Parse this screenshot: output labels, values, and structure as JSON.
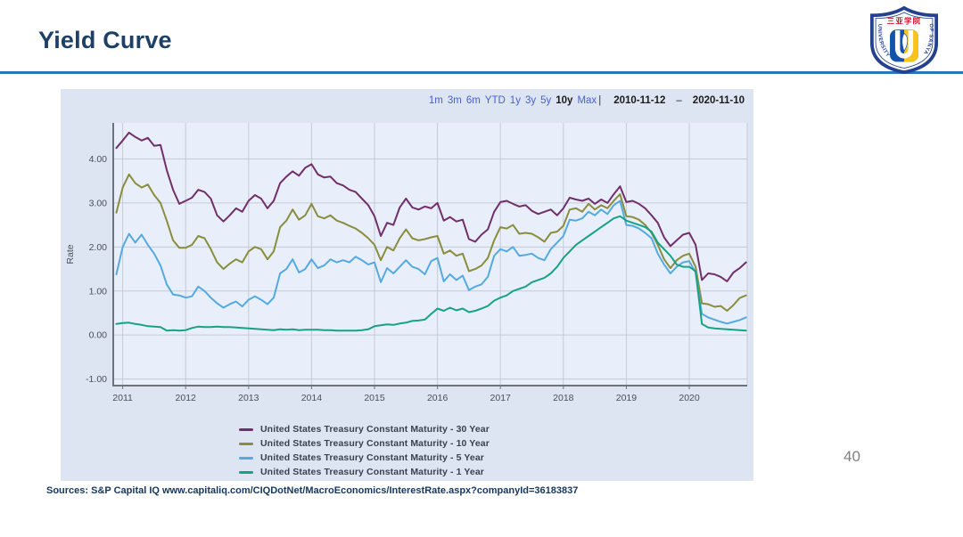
{
  "slide": {
    "title": "Yield Curve",
    "page_number": "40",
    "source_text": "Sources: S&P Capital IQ   www.capitaliq.com/CIQDotNet/MacroEconomics/InterestRate.aspx?companyId=36183837"
  },
  "logo": {
    "top_text": "三亚学院",
    "left_text": "UNIVERSITY",
    "right_text": "OF SANYA"
  },
  "range_selector": {
    "options": [
      "1m",
      "3m",
      "6m",
      "YTD",
      "1y",
      "3y",
      "5y",
      "10y",
      "Max"
    ],
    "active": "10y",
    "separator": "|",
    "start_date": "2010-11-12",
    "dash": "–",
    "end_date": "2020-11-10"
  },
  "colors": {
    "accent_rule": "#2e75b6",
    "title_text": "#1e3f66",
    "panel_bg": "#dce5f1",
    "plot_bg": "#e9effa",
    "grid": "#c5cad3",
    "axis": "#6e737b",
    "tick_text": "#4a5059",
    "link_blue": "#4a5fd0",
    "selected_text": "#1b1b1b",
    "legend_text": "#3a4250",
    "source_text": "#17365d",
    "page_number": "#808080",
    "logo_blue": "#24408e",
    "logo_red": "#cf1126",
    "logo_yellow": "#f6c51d"
  },
  "chart_data": {
    "type": "line",
    "title": "",
    "xlabel": "",
    "ylabel": "Rate",
    "grid": true,
    "legend_position": "bottom",
    "xlim": [
      2010.85,
      2020.92
    ],
    "ylim": [
      -1.15,
      4.82
    ],
    "x_ticks": [
      2011,
      2012,
      2013,
      2014,
      2015,
      2016,
      2017,
      2018,
      2019,
      2020
    ],
    "y_ticks": [
      4,
      3,
      2,
      1,
      0,
      -1
    ],
    "x_start": 2010.9,
    "x_step": 0.1,
    "x_unit": "decimal_year",
    "y_unit": "percent",
    "series": [
      {
        "name": "United States Treasury Constant Maturity - 30 Year",
        "short": "30-year",
        "color": "#702f6b",
        "values": [
          4.25,
          4.42,
          4.6,
          4.5,
          4.42,
          4.48,
          4.3,
          4.32,
          3.75,
          3.3,
          2.98,
          3.05,
          3.12,
          3.3,
          3.25,
          3.1,
          2.72,
          2.58,
          2.72,
          2.88,
          2.8,
          3.05,
          3.18,
          3.1,
          2.88,
          3.05,
          3.45,
          3.6,
          3.72,
          3.62,
          3.8,
          3.88,
          3.65,
          3.58,
          3.6,
          3.45,
          3.4,
          3.3,
          3.25,
          3.1,
          2.95,
          2.7,
          2.25,
          2.55,
          2.5,
          2.9,
          3.1,
          2.9,
          2.85,
          2.92,
          2.88,
          3.0,
          2.6,
          2.68,
          2.58,
          2.62,
          2.18,
          2.12,
          2.28,
          2.4,
          2.8,
          3.02,
          3.05,
          2.98,
          2.92,
          2.95,
          2.82,
          2.75,
          2.8,
          2.85,
          2.72,
          2.88,
          3.12,
          3.08,
          3.05,
          3.1,
          2.98,
          3.08,
          3.0,
          3.2,
          3.38,
          3.02,
          3.05,
          2.98,
          2.88,
          2.72,
          2.55,
          2.22,
          2.02,
          2.15,
          2.28,
          2.32,
          2.05,
          1.25,
          1.4,
          1.38,
          1.32,
          1.22,
          1.42,
          1.52,
          1.65
        ]
      },
      {
        "name": "United States Treasury Constant Maturity - 10 Year",
        "short": "10-year",
        "color": "#8a8c3e",
        "values": [
          2.78,
          3.35,
          3.65,
          3.45,
          3.35,
          3.42,
          3.18,
          3.0,
          2.6,
          2.15,
          1.98,
          1.98,
          2.05,
          2.25,
          2.2,
          1.95,
          1.65,
          1.5,
          1.62,
          1.72,
          1.65,
          1.9,
          2.0,
          1.95,
          1.72,
          1.9,
          2.45,
          2.6,
          2.85,
          2.62,
          2.72,
          2.98,
          2.7,
          2.65,
          2.72,
          2.6,
          2.55,
          2.48,
          2.42,
          2.32,
          2.2,
          2.05,
          1.7,
          2.0,
          1.92,
          2.2,
          2.4,
          2.2,
          2.15,
          2.18,
          2.22,
          2.25,
          1.85,
          1.92,
          1.8,
          1.85,
          1.45,
          1.5,
          1.58,
          1.75,
          2.15,
          2.45,
          2.42,
          2.5,
          2.3,
          2.32,
          2.3,
          2.22,
          2.12,
          2.32,
          2.35,
          2.48,
          2.85,
          2.88,
          2.8,
          2.98,
          2.85,
          2.95,
          2.88,
          3.05,
          3.2,
          2.7,
          2.68,
          2.62,
          2.5,
          2.32,
          2.05,
          1.72,
          1.52,
          1.7,
          1.8,
          1.85,
          1.55,
          0.72,
          0.7,
          0.64,
          0.66,
          0.55,
          0.68,
          0.84,
          0.9
        ]
      },
      {
        "name": "United States Treasury Constant Maturity - 5 Year",
        "short": "5-year",
        "color": "#54a9e0",
        "values": [
          1.38,
          2.0,
          2.3,
          2.1,
          2.28,
          2.05,
          1.85,
          1.58,
          1.15,
          0.92,
          0.9,
          0.85,
          0.88,
          1.1,
          1.0,
          0.85,
          0.72,
          0.62,
          0.7,
          0.76,
          0.65,
          0.8,
          0.88,
          0.8,
          0.7,
          0.85,
          1.4,
          1.5,
          1.72,
          1.42,
          1.5,
          1.72,
          1.52,
          1.58,
          1.72,
          1.65,
          1.7,
          1.65,
          1.78,
          1.7,
          1.6,
          1.65,
          1.2,
          1.52,
          1.4,
          1.55,
          1.7,
          1.55,
          1.5,
          1.38,
          1.68,
          1.75,
          1.22,
          1.38,
          1.25,
          1.35,
          1.02,
          1.1,
          1.15,
          1.32,
          1.8,
          1.95,
          1.9,
          2.0,
          1.8,
          1.82,
          1.85,
          1.75,
          1.7,
          1.95,
          2.1,
          2.25,
          2.62,
          2.6,
          2.65,
          2.8,
          2.72,
          2.85,
          2.75,
          2.95,
          3.05,
          2.5,
          2.48,
          2.42,
          2.32,
          2.2,
          1.85,
          1.6,
          1.4,
          1.55,
          1.65,
          1.68,
          1.42,
          0.48,
          0.4,
          0.35,
          0.3,
          0.26,
          0.3,
          0.34,
          0.4
        ]
      },
      {
        "name": "United States Treasury Constant Maturity - 1 Year",
        "short": "1-year",
        "color": "#17a286",
        "values": [
          0.25,
          0.27,
          0.28,
          0.25,
          0.23,
          0.2,
          0.19,
          0.18,
          0.1,
          0.11,
          0.1,
          0.11,
          0.16,
          0.19,
          0.18,
          0.18,
          0.19,
          0.18,
          0.18,
          0.17,
          0.16,
          0.15,
          0.14,
          0.13,
          0.12,
          0.11,
          0.13,
          0.12,
          0.13,
          0.11,
          0.12,
          0.12,
          0.12,
          0.11,
          0.11,
          0.1,
          0.1,
          0.1,
          0.1,
          0.11,
          0.13,
          0.2,
          0.22,
          0.24,
          0.23,
          0.26,
          0.28,
          0.32,
          0.33,
          0.35,
          0.48,
          0.6,
          0.55,
          0.62,
          0.56,
          0.6,
          0.52,
          0.55,
          0.6,
          0.66,
          0.78,
          0.85,
          0.9,
          1.0,
          1.05,
          1.1,
          1.2,
          1.25,
          1.3,
          1.4,
          1.55,
          1.75,
          1.9,
          2.05,
          2.15,
          2.25,
          2.35,
          2.45,
          2.55,
          2.65,
          2.7,
          2.6,
          2.55,
          2.5,
          2.45,
          2.35,
          2.1,
          1.95,
          1.8,
          1.6,
          1.55,
          1.55,
          1.45,
          0.25,
          0.17,
          0.15,
          0.14,
          0.13,
          0.12,
          0.11,
          0.1
        ]
      }
    ]
  }
}
